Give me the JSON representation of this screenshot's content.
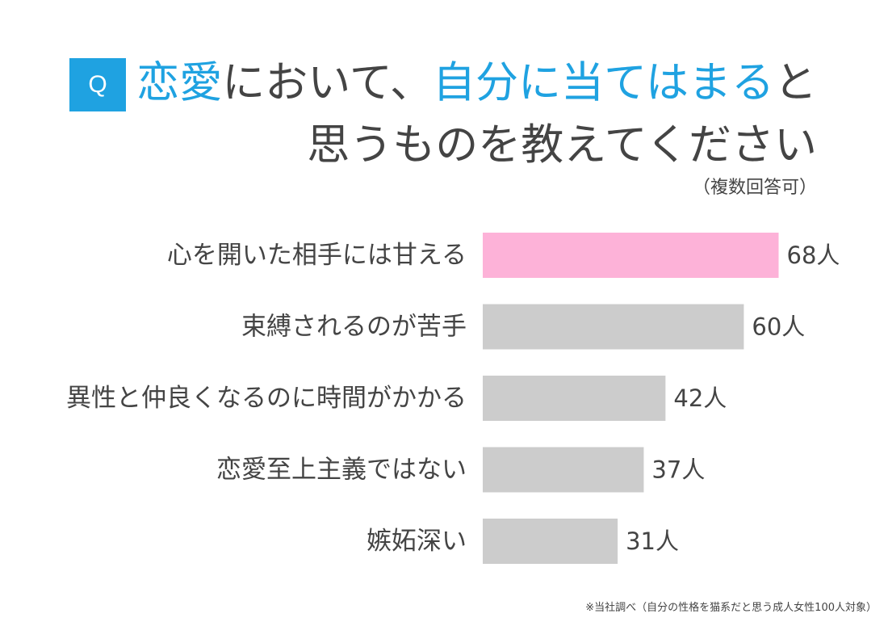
{
  "question_badge": "Q",
  "title": {
    "line1": [
      {
        "text": "恋愛",
        "highlight": true
      },
      {
        "text": "において、",
        "highlight": false
      },
      {
        "text": "自分に当てはまる",
        "highlight": true
      },
      {
        "text": "と",
        "highlight": false
      }
    ],
    "line2": "思うものを教えてください"
  },
  "subtitle": "（複数回答可）",
  "footnote": "※当社調べ（自分の性格を猫系だと思う成人女性100人対象）",
  "colors": {
    "accent": "#1fa2e1",
    "highlight_bar": "#fdb2d8",
    "bar": "#cccccc",
    "text": "#444444"
  },
  "chart_data": {
    "type": "bar",
    "orientation": "horizontal",
    "categories": [
      "心を開いた相手には甘える",
      "束縛されるのが苦手",
      "異性と仲良くなるのに時間がかかる",
      "恋愛至上主義ではない",
      "嫉妬深い"
    ],
    "values": [
      68,
      60,
      42,
      37,
      31
    ],
    "value_labels": [
      "68人",
      "60人",
      "42人",
      "37人",
      "31人"
    ],
    "unit": "人",
    "highlight_index": 0,
    "xlim": [
      0,
      100
    ],
    "grid": false,
    "legend": "none"
  }
}
